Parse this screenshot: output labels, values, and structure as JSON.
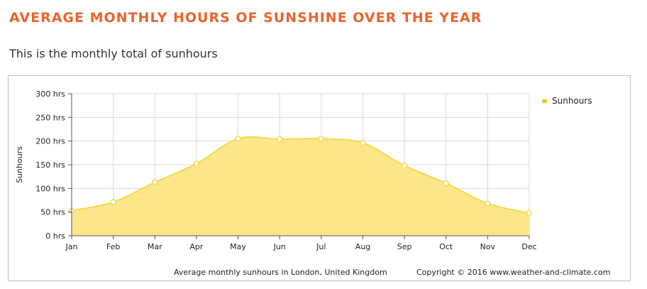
{
  "page": {
    "heading": "AVERAGE MONTHLY HOURS OF SUNSHINE OVER THE YEAR",
    "subheading": "This is the monthly total of sunhours"
  },
  "colors": {
    "heading": "#e8652b",
    "series_line": "#f7d84a",
    "series_fill": "#fde68a",
    "legend_marker": "#f5c518",
    "grid": "#d9d9d9"
  },
  "chart_data": {
    "type": "area",
    "title": "",
    "ylabel": "Sunhours",
    "xlabel": "",
    "categories": [
      "Jan",
      "Feb",
      "Mar",
      "Apr",
      "May",
      "Jun",
      "Jul",
      "Aug",
      "Sep",
      "Oct",
      "Nov",
      "Dec"
    ],
    "series": [
      {
        "name": "Sunhours",
        "values": [
          53,
          71,
          113,
          152,
          205,
          204,
          205,
          196,
          148,
          111,
          68,
          48
        ]
      }
    ],
    "ylim": [
      0,
      300
    ],
    "yticks": [
      0,
      50,
      100,
      150,
      200,
      250,
      300
    ],
    "ytick_labels": [
      "0 hrs",
      "50 hrs",
      "100 hrs",
      "150 hrs",
      "200 hrs",
      "250 hrs",
      "300 hrs"
    ],
    "grid": true,
    "legend": "top-right",
    "caption_left": "Average monthly sunhours in London, United Kingdom",
    "caption_right": "Copyright © 2016 www.weather-and-climate.com"
  }
}
